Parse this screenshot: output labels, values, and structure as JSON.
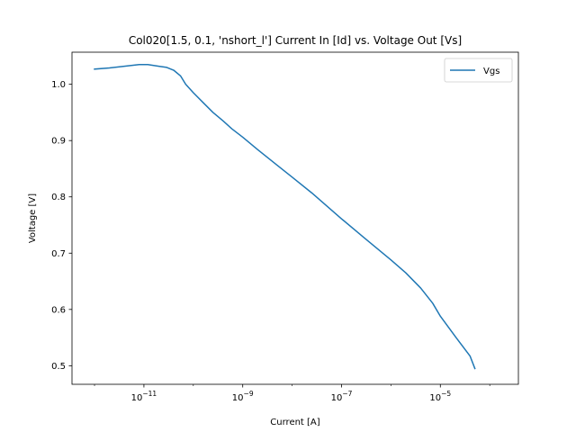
{
  "chart_data": {
    "type": "line",
    "title": "Col020[1.5, 0.1, 'nshort_l'] Current In [Id] vs. Voltage Out [Vs]",
    "xlabel": "Current [A]",
    "ylabel": "Voltage [V]",
    "xscale": "log",
    "xlim": [
      3.5e-13,
      0.00038
    ],
    "ylim": [
      0.467,
      1.057
    ],
    "xticks": [
      {
        "value": 1e-11,
        "base": "10",
        "exp": "−11"
      },
      {
        "value": 1e-09,
        "base": "10",
        "exp": "−9"
      },
      {
        "value": 1e-07,
        "base": "10",
        "exp": "−7"
      },
      {
        "value": 1e-05,
        "base": "10",
        "exp": "−5"
      }
    ],
    "yticks": [
      {
        "value": 0.5,
        "label": "0.5"
      },
      {
        "value": 0.6,
        "label": "0.6"
      },
      {
        "value": 0.7,
        "label": "0.7"
      },
      {
        "value": 0.8,
        "label": "0.8"
      },
      {
        "value": 0.9,
        "label": "0.9"
      },
      {
        "value": 1.0,
        "label": "1.0"
      }
    ],
    "grid": false,
    "legend": "top-right",
    "series": [
      {
        "name": "Vgs",
        "color": "#1f77b4",
        "x": [
          1e-12,
          2e-12,
          4e-12,
          8e-12,
          1.2e-11,
          2e-11,
          2.9e-11,
          4e-11,
          5.5e-11,
          7e-11,
          1e-10,
          1.6e-10,
          2.5e-10,
          4e-10,
          6e-10,
          1e-09,
          2e-09,
          5e-09,
          1e-08,
          2.5e-08,
          1e-07,
          3e-07,
          1e-06,
          2e-06,
          4e-06,
          7e-06,
          1e-05,
          2e-05,
          4e-05,
          5e-05
        ],
        "y": [
          1.027,
          1.029,
          1.032,
          1.035,
          1.035,
          1.032,
          1.03,
          1.025,
          1.015,
          1.0,
          0.985,
          0.967,
          0.95,
          0.935,
          0.921,
          0.906,
          0.884,
          0.856,
          0.835,
          0.807,
          0.761,
          0.726,
          0.688,
          0.665,
          0.638,
          0.611,
          0.588,
          0.552,
          0.517,
          0.495
        ]
      }
    ]
  }
}
